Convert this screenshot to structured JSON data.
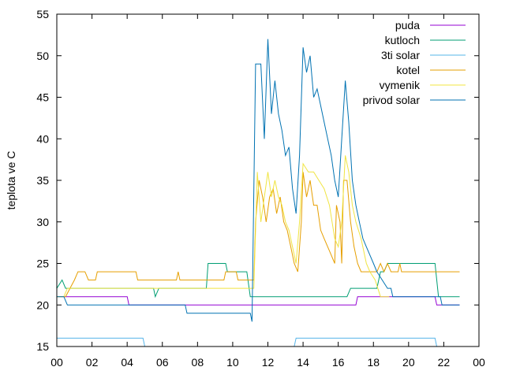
{
  "chart_data": {
    "type": "line",
    "ylabel": "teplota ve C",
    "xlim": [
      0,
      24
    ],
    "ylim": [
      15,
      55
    ],
    "x_ticks": [
      "00",
      "02",
      "04",
      "06",
      "08",
      "10",
      "12",
      "14",
      "16",
      "18",
      "20",
      "22",
      "00"
    ],
    "y_ticks": [
      "15",
      "20",
      "25",
      "30",
      "35",
      "40",
      "45",
      "50",
      "55"
    ],
    "legend_position": "top-right",
    "grid": false,
    "series": [
      {
        "name": "puda",
        "color": "#9400d3",
        "points": [
          [
            0,
            21
          ],
          [
            4,
            21
          ],
          [
            4.1,
            20
          ],
          [
            17,
            20
          ],
          [
            17.1,
            21
          ],
          [
            21.5,
            21
          ],
          [
            21.6,
            20
          ],
          [
            22.9,
            20
          ]
        ]
      },
      {
        "name": "kutloch",
        "color": "#009e73",
        "points": [
          [
            0.0,
            22.0
          ],
          [
            0.3,
            23.0
          ],
          [
            0.5,
            22.0
          ],
          [
            5.5,
            22.0
          ],
          [
            5.6,
            21.0
          ],
          [
            5.8,
            22.0
          ],
          [
            8.5,
            22.0
          ],
          [
            8.6,
            25.0
          ],
          [
            9.6,
            25.0
          ],
          [
            9.7,
            24.0
          ],
          [
            10.8,
            24.0
          ],
          [
            11.0,
            21.0
          ],
          [
            16.5,
            21.0
          ],
          [
            16.7,
            22.0
          ],
          [
            18.2,
            22.0
          ],
          [
            18.4,
            24.0
          ],
          [
            18.6,
            24.0
          ],
          [
            18.8,
            25.0
          ],
          [
            21.5,
            25.0
          ],
          [
            21.7,
            21.0
          ],
          [
            22.9,
            21.0
          ]
        ]
      },
      {
        "name": "3ti solar",
        "color": "#56b4e9",
        "points": [
          [
            0,
            16
          ],
          [
            4.9,
            16
          ],
          [
            5.0,
            15
          ],
          [
            13.5,
            15
          ],
          [
            13.6,
            16
          ],
          [
            21.5,
            16
          ],
          [
            21.6,
            15
          ],
          [
            22.9,
            15
          ]
        ]
      },
      {
        "name": "kotel",
        "color": "#e69f00",
        "points": [
          [
            0.0,
            21.0
          ],
          [
            0.5,
            21.0
          ],
          [
            1.0,
            23.0
          ],
          [
            1.2,
            24.0
          ],
          [
            1.6,
            24.0
          ],
          [
            1.8,
            23.0
          ],
          [
            2.2,
            23.0
          ],
          [
            2.3,
            24.0
          ],
          [
            4.5,
            24.0
          ],
          [
            4.6,
            23.0
          ],
          [
            6.8,
            23.0
          ],
          [
            6.9,
            24.0
          ],
          [
            7.0,
            23.0
          ],
          [
            9.5,
            23.0
          ],
          [
            9.6,
            24.0
          ],
          [
            10.2,
            24.0
          ],
          [
            10.3,
            23.0
          ],
          [
            11.2,
            23.0
          ],
          [
            11.3,
            30.0
          ],
          [
            11.5,
            35.0
          ],
          [
            11.7,
            33.0
          ],
          [
            11.9,
            30.0
          ],
          [
            12.1,
            33.0
          ],
          [
            12.3,
            34.0
          ],
          [
            12.5,
            31.0
          ],
          [
            12.7,
            33.0
          ],
          [
            12.9,
            30.0
          ],
          [
            13.1,
            29.0
          ],
          [
            13.3,
            27.0
          ],
          [
            13.5,
            25.0
          ],
          [
            13.7,
            24.0
          ],
          [
            13.9,
            30.0
          ],
          [
            14.0,
            36.0
          ],
          [
            14.2,
            33.0
          ],
          [
            14.4,
            35.0
          ],
          [
            14.6,
            32.0
          ],
          [
            14.8,
            32.0
          ],
          [
            15.0,
            29.0
          ],
          [
            15.2,
            28.0
          ],
          [
            15.4,
            27.0
          ],
          [
            15.6,
            26.0
          ],
          [
            15.8,
            25.0
          ],
          [
            15.9,
            32.0
          ],
          [
            16.1,
            30.0
          ],
          [
            16.2,
            25.0
          ],
          [
            16.3,
            35.0
          ],
          [
            16.5,
            35.0
          ],
          [
            16.7,
            30.0
          ],
          [
            16.9,
            27.0
          ],
          [
            17.1,
            25.0
          ],
          [
            17.3,
            24.0
          ],
          [
            18.2,
            24.0
          ],
          [
            18.4,
            25.0
          ],
          [
            18.6,
            24.0
          ],
          [
            18.8,
            25.0
          ],
          [
            19.0,
            24.0
          ],
          [
            19.4,
            24.0
          ],
          [
            19.5,
            25.0
          ],
          [
            19.6,
            24.0
          ],
          [
            22.9,
            24.0
          ]
        ]
      },
      {
        "name": "vymenik",
        "color": "#f0e442",
        "points": [
          [
            0.0,
            21.0
          ],
          [
            0.4,
            21.0
          ],
          [
            0.6,
            22.0
          ],
          [
            11.2,
            22.0
          ],
          [
            11.4,
            36.0
          ],
          [
            11.6,
            30.0
          ],
          [
            11.8,
            33.0
          ],
          [
            12.0,
            36.0
          ],
          [
            12.2,
            33.0
          ],
          [
            12.4,
            35.0
          ],
          [
            12.6,
            33.0
          ],
          [
            12.8,
            32.0
          ],
          [
            13.0,
            30.0
          ],
          [
            13.2,
            29.0
          ],
          [
            13.4,
            27.0
          ],
          [
            13.6,
            25.0
          ],
          [
            13.8,
            30.0
          ],
          [
            14.0,
            37.0
          ],
          [
            14.3,
            36.0
          ],
          [
            14.6,
            36.0
          ],
          [
            14.9,
            35.0
          ],
          [
            15.2,
            34.0
          ],
          [
            15.5,
            32.0
          ],
          [
            15.8,
            28.0
          ],
          [
            16.0,
            27.0
          ],
          [
            16.2,
            30.0
          ],
          [
            16.4,
            38.0
          ],
          [
            16.6,
            36.0
          ],
          [
            16.8,
            32.0
          ],
          [
            17.0,
            30.0
          ],
          [
            17.3,
            28.0
          ],
          [
            17.6,
            25.0
          ],
          [
            17.8,
            24.0
          ],
          [
            18.1,
            23.0
          ],
          [
            18.4,
            21.0
          ],
          [
            18.9,
            21.0
          ]
        ]
      },
      {
        "name": "privod solar",
        "color": "#0072b2",
        "points": [
          [
            0.0,
            21.0
          ],
          [
            0.4,
            21.0
          ],
          [
            0.6,
            20.0
          ],
          [
            7.3,
            20.0
          ],
          [
            7.4,
            19.0
          ],
          [
            11.0,
            19.0
          ],
          [
            11.1,
            18.0
          ],
          [
            11.3,
            49.0
          ],
          [
            11.6,
            49.0
          ],
          [
            11.8,
            40.0
          ],
          [
            12.0,
            52.0
          ],
          [
            12.2,
            43.0
          ],
          [
            12.4,
            47.0
          ],
          [
            12.6,
            43.0
          ],
          [
            12.8,
            41.0
          ],
          [
            13.0,
            38.0
          ],
          [
            13.2,
            39.0
          ],
          [
            13.4,
            34.0
          ],
          [
            13.6,
            31.0
          ],
          [
            13.8,
            38.0
          ],
          [
            14.0,
            51.0
          ],
          [
            14.2,
            48.0
          ],
          [
            14.4,
            50.0
          ],
          [
            14.6,
            45.0
          ],
          [
            14.8,
            46.0
          ],
          [
            15.0,
            44.0
          ],
          [
            15.2,
            42.0
          ],
          [
            15.4,
            40.0
          ],
          [
            15.6,
            38.0
          ],
          [
            15.8,
            35.0
          ],
          [
            16.0,
            33.0
          ],
          [
            16.2,
            40.0
          ],
          [
            16.4,
            47.0
          ],
          [
            16.6,
            42.0
          ],
          [
            16.8,
            35.0
          ],
          [
            17.0,
            32.0
          ],
          [
            17.2,
            30.0
          ],
          [
            17.4,
            28.0
          ],
          [
            17.6,
            27.0
          ],
          [
            17.8,
            26.0
          ],
          [
            18.0,
            25.0
          ],
          [
            18.2,
            24.0
          ],
          [
            18.5,
            23.0
          ],
          [
            18.8,
            22.0
          ],
          [
            19.0,
            22.0
          ],
          [
            19.1,
            21.0
          ],
          [
            21.8,
            21.0
          ],
          [
            21.9,
            20.0
          ],
          [
            22.9,
            20.0
          ]
        ]
      }
    ]
  }
}
